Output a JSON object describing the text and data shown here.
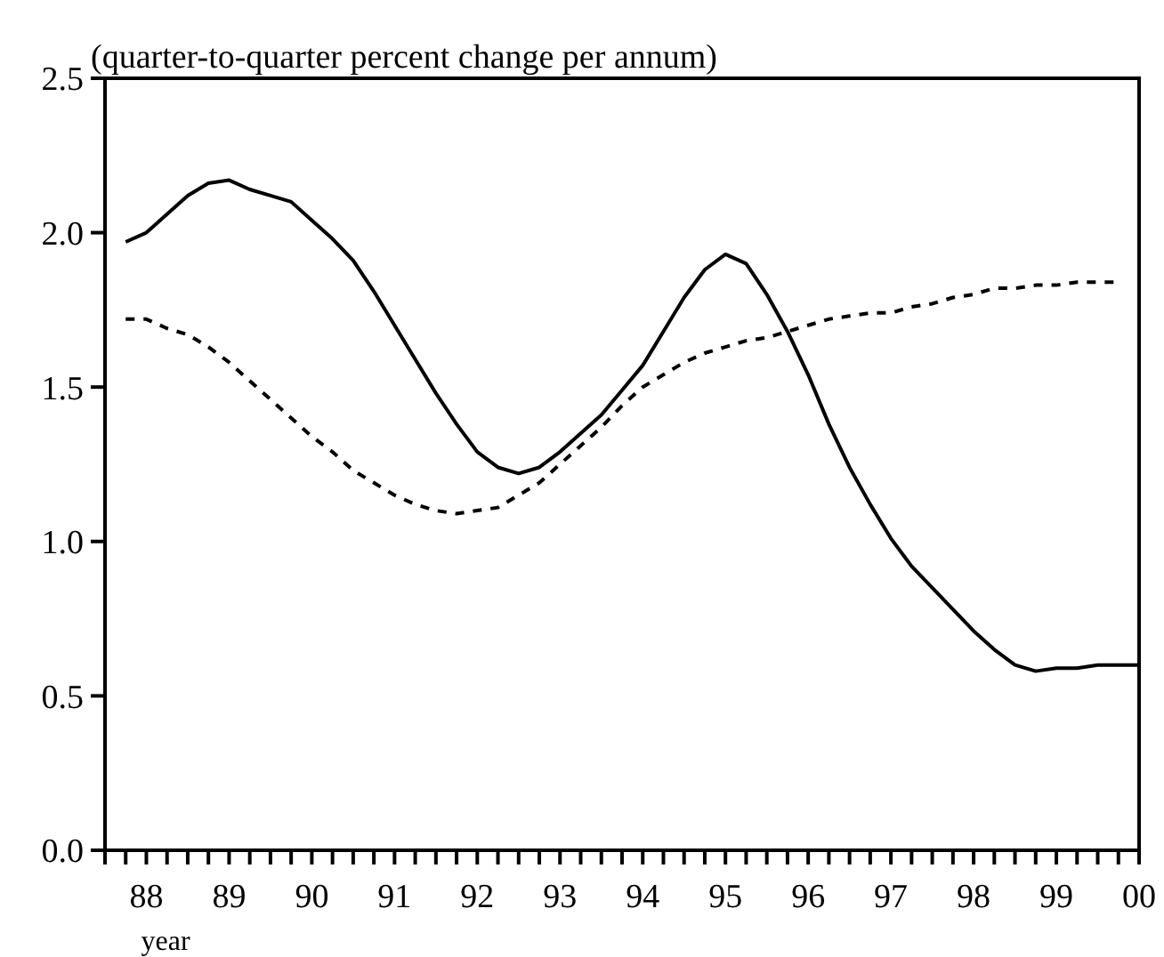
{
  "chart_data": {
    "type": "line",
    "ylabel": "(quarter-to-quarter percent change per annum)",
    "xlabel": "year",
    "x": [
      1987.75,
      1988,
      1988.25,
      1988.5,
      1988.75,
      1989,
      1989.25,
      1989.5,
      1989.75,
      1990,
      1990.25,
      1990.5,
      1990.75,
      1991,
      1991.25,
      1991.5,
      1991.75,
      1992,
      1992.25,
      1992.5,
      1992.75,
      1993,
      1993.25,
      1993.5,
      1993.75,
      1994,
      1994.25,
      1994.5,
      1994.75,
      1995,
      1995.25,
      1995.5,
      1995.75,
      1996,
      1996.25,
      1996.5,
      1996.75,
      1997,
      1997.25,
      1997.5,
      1997.75,
      1998,
      1998.25,
      1998.5,
      1998.75,
      1999,
      1999.25,
      1999.5,
      1999.75,
      2000
    ],
    "series": [
      {
        "color": "#000000",
        "line_style": "solid",
        "values": [
          1.97,
          2.0,
          2.06,
          2.12,
          2.16,
          2.17,
          2.14,
          2.12,
          2.1,
          2.04,
          1.98,
          1.91,
          1.81,
          1.7,
          1.59,
          1.48,
          1.38,
          1.29,
          1.24,
          1.22,
          1.24,
          1.29,
          1.35,
          1.41,
          1.49,
          1.57,
          1.68,
          1.79,
          1.88,
          1.93,
          1.9,
          1.8,
          1.68,
          1.54,
          1.38,
          1.24,
          1.12,
          1.01,
          0.92,
          0.85,
          0.78,
          0.71,
          0.65,
          0.6,
          0.58,
          0.59,
          0.59,
          0.6,
          0.6,
          0.6
        ]
      },
      {
        "color": "#000000",
        "line_style": "dashed",
        "values": [
          1.72,
          1.72,
          1.69,
          1.67,
          1.63,
          1.58,
          1.52,
          1.46,
          1.4,
          1.34,
          1.29,
          1.23,
          1.19,
          1.15,
          1.12,
          1.1,
          1.09,
          1.1,
          1.11,
          1.15,
          1.19,
          1.25,
          1.31,
          1.37,
          1.44,
          1.5,
          1.54,
          1.58,
          1.61,
          1.63,
          1.65,
          1.66,
          1.68,
          1.7,
          1.72,
          1.73,
          1.74,
          1.74,
          1.76,
          1.77,
          1.79,
          1.8,
          1.82,
          1.82,
          1.83,
          1.83,
          1.84,
          1.84,
          1.84,
          null
        ]
      }
    ],
    "xlim": [
      1987.5,
      2000
    ],
    "xticks": [
      {
        "value": 1987.5,
        "label": null
      },
      {
        "value": 1987.75,
        "label": null
      },
      {
        "value": 1988,
        "label": "88"
      },
      {
        "value": 1988.25,
        "label": null
      },
      {
        "value": 1988.5,
        "label": null
      },
      {
        "value": 1988.75,
        "label": null
      },
      {
        "value": 1989,
        "label": "89"
      },
      {
        "value": 1989.25,
        "label": null
      },
      {
        "value": 1989.5,
        "label": null
      },
      {
        "value": 1989.75,
        "label": null
      },
      {
        "value": 1990,
        "label": "90"
      },
      {
        "value": 1990.25,
        "label": null
      },
      {
        "value": 1990.5,
        "label": null
      },
      {
        "value": 1990.75,
        "label": null
      },
      {
        "value": 1991,
        "label": "91"
      },
      {
        "value": 1991.25,
        "label": null
      },
      {
        "value": 1991.5,
        "label": null
      },
      {
        "value": 1991.75,
        "label": null
      },
      {
        "value": 1992,
        "label": "92"
      },
      {
        "value": 1992.25,
        "label": null
      },
      {
        "value": 1992.5,
        "label": null
      },
      {
        "value": 1992.75,
        "label": null
      },
      {
        "value": 1993,
        "label": "93"
      },
      {
        "value": 1993.25,
        "label": null
      },
      {
        "value": 1993.5,
        "label": null
      },
      {
        "value": 1993.75,
        "label": null
      },
      {
        "value": 1994,
        "label": "94"
      },
      {
        "value": 1994.25,
        "label": null
      },
      {
        "value": 1994.5,
        "label": null
      },
      {
        "value": 1994.75,
        "label": null
      },
      {
        "value": 1995,
        "label": "95"
      },
      {
        "value": 1995.25,
        "label": null
      },
      {
        "value": 1995.5,
        "label": null
      },
      {
        "value": 1995.75,
        "label": null
      },
      {
        "value": 1996,
        "label": "96"
      },
      {
        "value": 1996.25,
        "label": null
      },
      {
        "value": 1996.5,
        "label": null
      },
      {
        "value": 1996.75,
        "label": null
      },
      {
        "value": 1997,
        "label": "97"
      },
      {
        "value": 1997.25,
        "label": null
      },
      {
        "value": 1997.5,
        "label": null
      },
      {
        "value": 1997.75,
        "label": null
      },
      {
        "value": 1998,
        "label": "98"
      },
      {
        "value": 1998.25,
        "label": null
      },
      {
        "value": 1998.5,
        "label": null
      },
      {
        "value": 1998.75,
        "label": null
      },
      {
        "value": 1999,
        "label": "99"
      },
      {
        "value": 1999.25,
        "label": null
      },
      {
        "value": 1999.5,
        "label": null
      },
      {
        "value": 1999.75,
        "label": null
      },
      {
        "value": 2000,
        "label": "00"
      }
    ],
    "ylim": [
      0,
      2.5
    ],
    "yticks": [
      {
        "value": 0,
        "label": "0.0"
      },
      {
        "value": 0.5,
        "label": "0.5"
      },
      {
        "value": 1,
        "label": "1.0"
      },
      {
        "value": 1.5,
        "label": "1.5"
      },
      {
        "value": 2,
        "label": "2.0"
      },
      {
        "value": 2.5,
        "label": "2.5"
      }
    ],
    "grid": false
  }
}
